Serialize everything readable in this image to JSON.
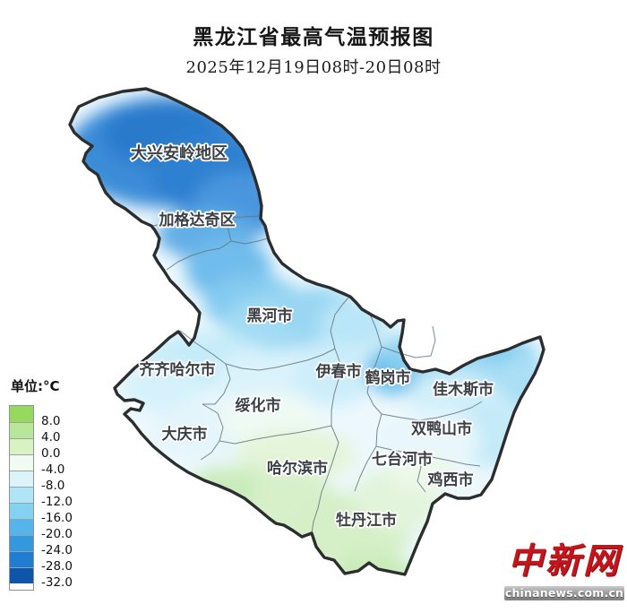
{
  "header": {
    "title": "黑龙江省最高气温预报图",
    "subtitle": "2025年12月19日08时-20日08时"
  },
  "legend": {
    "unit_label": "单位:°C",
    "entries": [
      {
        "color": "#97d95c",
        "label": "8.0"
      },
      {
        "color": "#b8e79a",
        "label": "4.0"
      },
      {
        "color": "#d9f2c4",
        "label": "0.0"
      },
      {
        "color": "#f2fbf2",
        "label": "-4.0"
      },
      {
        "color": "#ddf3fa",
        "label": "-8.0"
      },
      {
        "color": "#b0e5f7",
        "label": "-12.0"
      },
      {
        "color": "#84d2f2",
        "label": "-16.0"
      },
      {
        "color": "#55b5ea",
        "label": "-20.0"
      },
      {
        "color": "#3399df",
        "label": "-24.0"
      },
      {
        "color": "#1f7ed2",
        "label": "-28.0"
      },
      {
        "color": "#0f55ac",
        "label": "-32.0"
      }
    ]
  },
  "map": {
    "labels": [
      {
        "text": "大兴安岭地区"
      },
      {
        "text": "加格达奇区"
      },
      {
        "text": "黑河市"
      },
      {
        "text": "齐齐哈尔市"
      },
      {
        "text": "伊春市"
      },
      {
        "text": "鹤岗市"
      },
      {
        "text": "佳木斯市"
      },
      {
        "text": "绥化市"
      },
      {
        "text": "双鸭山市"
      },
      {
        "text": "大庆市"
      },
      {
        "text": "七台河市"
      },
      {
        "text": "哈尔滨市"
      },
      {
        "text": "鸡西市"
      },
      {
        "text": "牡丹江市"
      }
    ]
  },
  "footer": {
    "logo_text": "中新网",
    "logo_url": "chinanews.com.cn",
    "logo_color": "#c2151c"
  }
}
